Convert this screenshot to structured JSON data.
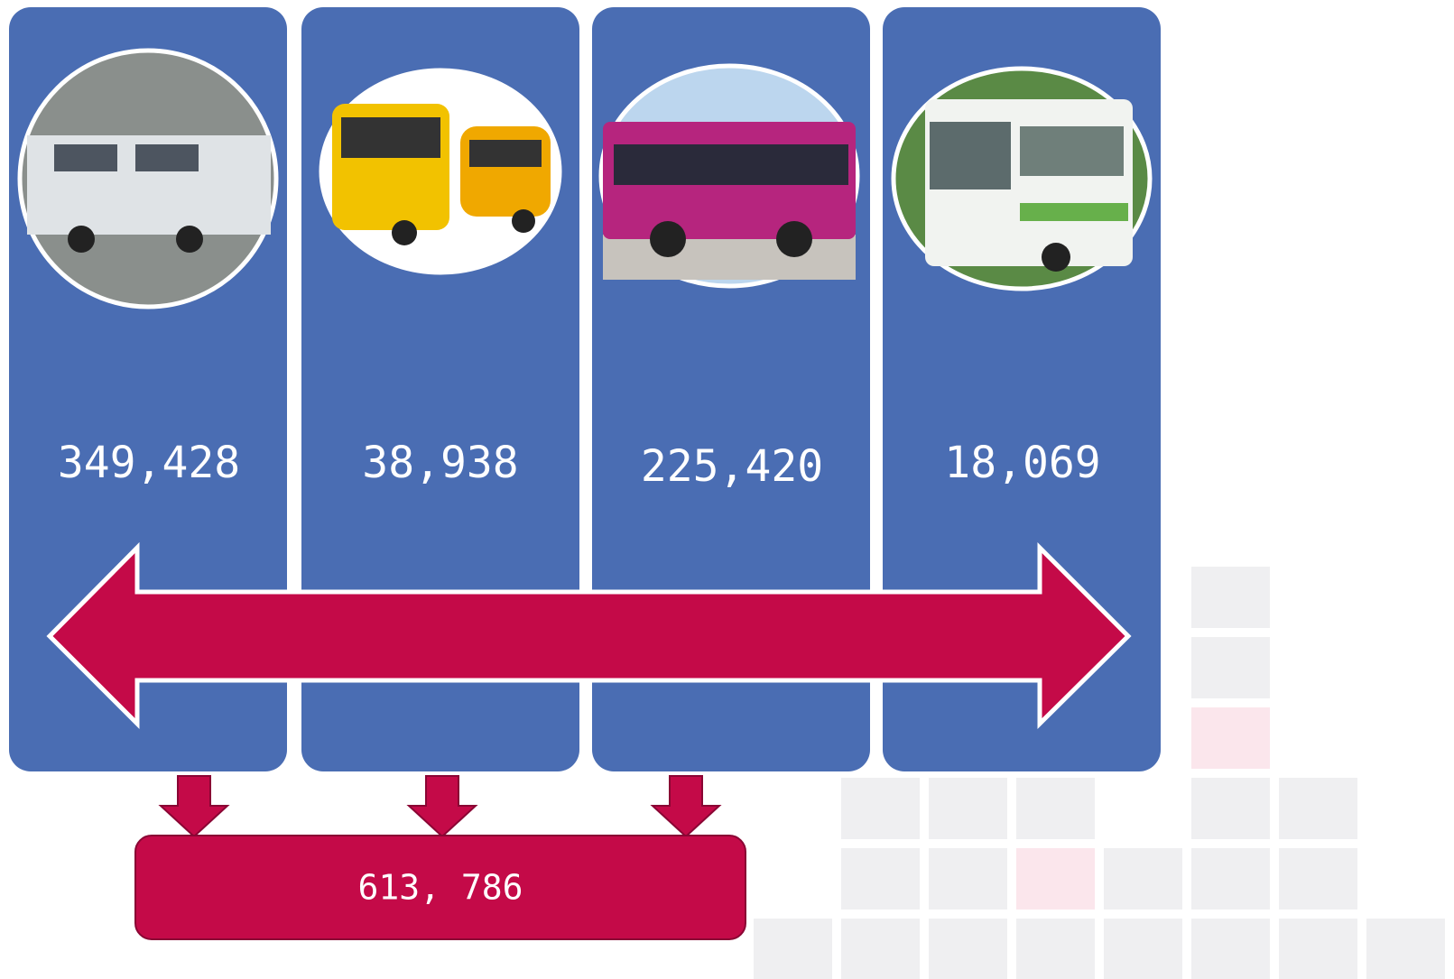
{
  "panels": [
    {
      "value": "349,428"
    },
    {
      "value": "38,938"
    },
    {
      "value": "225,420"
    },
    {
      "value": "18,069"
    }
  ],
  "total": "613, 786"
}
